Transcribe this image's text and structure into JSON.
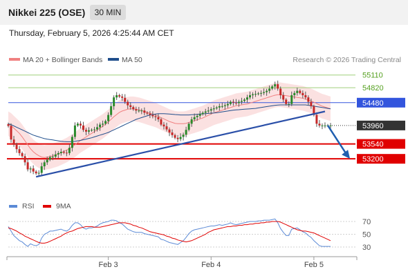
{
  "header": {
    "title": "Nikkei 225 (OSE)",
    "timeframe": "30 MIN"
  },
  "timestamp": "Thursday, February 5, 2026 4:25:44 AM CET",
  "legend": {
    "ma20": "MA 20 + Bollinger Bands",
    "ma50": "MA 50",
    "credit": "Research © 2026 Trading Central",
    "colors": {
      "ma20": "#f08080",
      "ma50": "#1f4e8c",
      "bands": "#fadcdc"
    }
  },
  "indicator_legend": {
    "rsi": "RSI",
    "ma9": "9MA",
    "colors": {
      "rsi": "#5b8ad6",
      "ma9": "#e00000"
    }
  },
  "chart_data": [
    {
      "type": "candlestick",
      "ylim": [
        52700,
        55270
      ],
      "x_ticks": [
        {
          "label": "Feb 3",
          "index": 36
        },
        {
          "label": "Feb 4",
          "index": 73
        },
        {
          "label": "Feb 5",
          "index": 110
        }
      ],
      "num_bars": 117,
      "levels": [
        {
          "value": 55110,
          "label": "55110",
          "color": "#55a020",
          "style": "thin-green"
        },
        {
          "value": 54820,
          "label": "54820",
          "color": "#55a020",
          "style": "thin-green"
        },
        {
          "value": 54480,
          "label": "54480",
          "color": "#3355dd",
          "style": "blue"
        },
        {
          "value": 53960,
          "label": "53960",
          "color": "#333333",
          "style": "current"
        },
        {
          "value": 53540,
          "label": "53540",
          "color": "#e00000",
          "style": "red"
        },
        {
          "value": 53200,
          "label": "53200",
          "color": "#e00000",
          "style": "red"
        }
      ],
      "trendline": {
        "from": {
          "index": 10,
          "value": 52790
        },
        "to": {
          "index": 114,
          "value": 54280
        }
      },
      "arrow": {
        "from": {
          "index": 115,
          "value": 53960
        },
        "to": {
          "index": 123,
          "value": 53200
        }
      },
      "close": [
        53950,
        53640,
        53520,
        53420,
        53330,
        53260,
        53120,
        52960,
        52980,
        52910,
        52870,
        52880,
        53030,
        53120,
        53180,
        53240,
        53250,
        53300,
        53330,
        53360,
        53340,
        53330,
        53450,
        53700,
        53960,
        54000,
        53960,
        53860,
        53820,
        53850,
        53860,
        53870,
        53920,
        53980,
        54000,
        54060,
        54200,
        54400,
        54600,
        54650,
        54620,
        54590,
        54500,
        54420,
        54380,
        54330,
        54300,
        54300,
        54300,
        54250,
        54230,
        54200,
        54170,
        54150,
        54100,
        53980,
        53940,
        53870,
        53800,
        53740,
        53680,
        53650,
        53700,
        53750,
        53860,
        54000,
        54100,
        54150,
        54180,
        54220,
        54250,
        54280,
        54300,
        54330,
        54350,
        54370,
        54400,
        54400,
        54420,
        54450,
        54500,
        54480,
        54470,
        54500,
        54520,
        54550,
        54600,
        54650,
        54670,
        54680,
        54690,
        54700,
        54720,
        54750,
        54800,
        54850,
        54900,
        54800,
        54650,
        54550,
        54450,
        54450,
        54650,
        54700,
        54750,
        54700,
        54650,
        54600,
        54500,
        54400,
        54200,
        54000,
        53960,
        53960,
        53960,
        53960,
        53960
      ],
      "ma20": [
        54000,
        53960,
        53900,
        53840,
        53780,
        53700,
        53610,
        53520,
        53430,
        53360,
        53310,
        53270,
        53240,
        53230,
        53240,
        53250,
        53270,
        53290,
        53310,
        53340,
        53370,
        53400,
        53440,
        53480,
        53520,
        53570,
        53620,
        53660,
        53700,
        53740,
        53780,
        53820,
        53860,
        53900,
        53940,
        53990,
        54040,
        54100,
        54160,
        54210,
        54260,
        54290,
        54310,
        54330,
        54340,
        54340,
        54330,
        54320,
        54300,
        54280,
        54260,
        54240,
        54220,
        54200,
        54170,
        54140,
        54110,
        54080,
        54050,
        54030,
        54010,
        54000,
        54000,
        54000,
        54010,
        54030,
        54050,
        54070,
        54090,
        54110,
        54130,
        54160,
        54190,
        54220,
        54250,
        54270,
        54290,
        54310,
        54330,
        54350,
        54370,
        54390,
        54410,
        54420,
        54430,
        54440,
        54450,
        54470,
        54490,
        54510,
        54530,
        54550,
        54570,
        54590,
        54610,
        54630,
        54650,
        54660,
        54660,
        54650,
        54640,
        54630,
        54620,
        54610,
        54600,
        54590,
        54580,
        54560,
        54540,
        54520,
        54490,
        54460,
        54430,
        54400,
        54380,
        54360,
        54340
      ],
      "ma50": [
        54000,
        53980,
        53950,
        53920,
        53890,
        53860,
        53830,
        53800,
        53770,
        53740,
        53720,
        53700,
        53680,
        53660,
        53650,
        53640,
        53630,
        53620,
        53610,
        53600,
        53595,
        53590,
        53590,
        53590,
        53600,
        53610,
        53620,
        53635,
        53650,
        53665,
        53680,
        53700,
        53720,
        53740,
        53760,
        53780,
        53800,
        53830,
        53860,
        53890,
        53920,
        53950,
        53980,
        54010,
        54040,
        54070,
        54100,
        54120,
        54140,
        54160,
        54180,
        54200,
        54210,
        54220,
        54230,
        54230,
        54230,
        54225,
        54220,
        54215,
        54210,
        54205,
        54200,
        54200,
        54200,
        54200,
        54205,
        54210,
        54215,
        54220,
        54225,
        54230,
        54235,
        54240,
        54245,
        54250,
        54260,
        54270,
        54280,
        54290,
        54300,
        54310,
        54315,
        54320,
        54325,
        54330,
        54335,
        54340,
        54345,
        54350,
        54360,
        54370,
        54380,
        54390,
        54400,
        54410,
        54420,
        54425,
        54430,
        54430,
        54430,
        54430,
        54430,
        54430,
        54430,
        54430,
        54430,
        54430,
        54420,
        54410,
        54400,
        54390,
        54380,
        54370,
        54360,
        54350,
        54340
      ],
      "band_width": 280
    },
    {
      "type": "line",
      "yticks": [
        70,
        50,
        30
      ],
      "ylim": [
        25,
        80
      ],
      "series": [
        {
          "name": "RSI",
          "values": [
            62,
            55,
            48,
            44,
            40,
            38,
            34,
            31,
            35,
            33,
            32,
            34,
            44,
            50,
            52,
            55,
            55,
            56,
            57,
            58,
            56,
            55,
            58,
            64,
            68,
            68,
            65,
            60,
            58,
            60,
            60,
            61,
            63,
            66,
            68,
            69,
            70,
            72,
            72,
            71,
            68,
            66,
            62,
            58,
            56,
            54,
            53,
            53,
            53,
            51,
            50,
            49,
            48,
            47,
            46,
            42,
            41,
            39,
            37,
            36,
            35,
            34,
            37,
            40,
            45,
            51,
            55,
            57,
            58,
            59,
            60,
            61,
            62,
            63,
            63,
            64,
            65,
            64,
            65,
            66,
            68,
            66,
            65,
            66,
            67,
            68,
            69,
            70,
            70,
            70,
            71,
            71,
            72,
            72,
            72,
            73,
            74,
            68,
            59,
            53,
            48,
            48,
            58,
            59,
            60,
            57,
            54,
            52,
            48,
            45,
            40,
            36,
            32,
            31,
            31,
            31,
            31
          ]
        },
        {
          "name": "9MA",
          "values": [
            60,
            59,
            57,
            55,
            52,
            50,
            47,
            45,
            43,
            41,
            39,
            37,
            36,
            36,
            37,
            39,
            41,
            43,
            45,
            47,
            50,
            52,
            54,
            55,
            57,
            59,
            60,
            61,
            62,
            62,
            62,
            61,
            61,
            61,
            62,
            63,
            64,
            65,
            66,
            67,
            68,
            68,
            68,
            67,
            66,
            64,
            63,
            61,
            60,
            58,
            56,
            54,
            53,
            52,
            51,
            50,
            49,
            47,
            46,
            44,
            43,
            41,
            40,
            39,
            38,
            39,
            40,
            42,
            44,
            46,
            48,
            50,
            53,
            55,
            57,
            58,
            59,
            60,
            61,
            62,
            62,
            63,
            63,
            64,
            64,
            65,
            65,
            66,
            66,
            67,
            67,
            68,
            68,
            69,
            69,
            70,
            70,
            70,
            69,
            67,
            65,
            63,
            61,
            59,
            57,
            56,
            55,
            55,
            54,
            53,
            52,
            50,
            48,
            46,
            44,
            42,
            40
          ]
        }
      ]
    }
  ]
}
